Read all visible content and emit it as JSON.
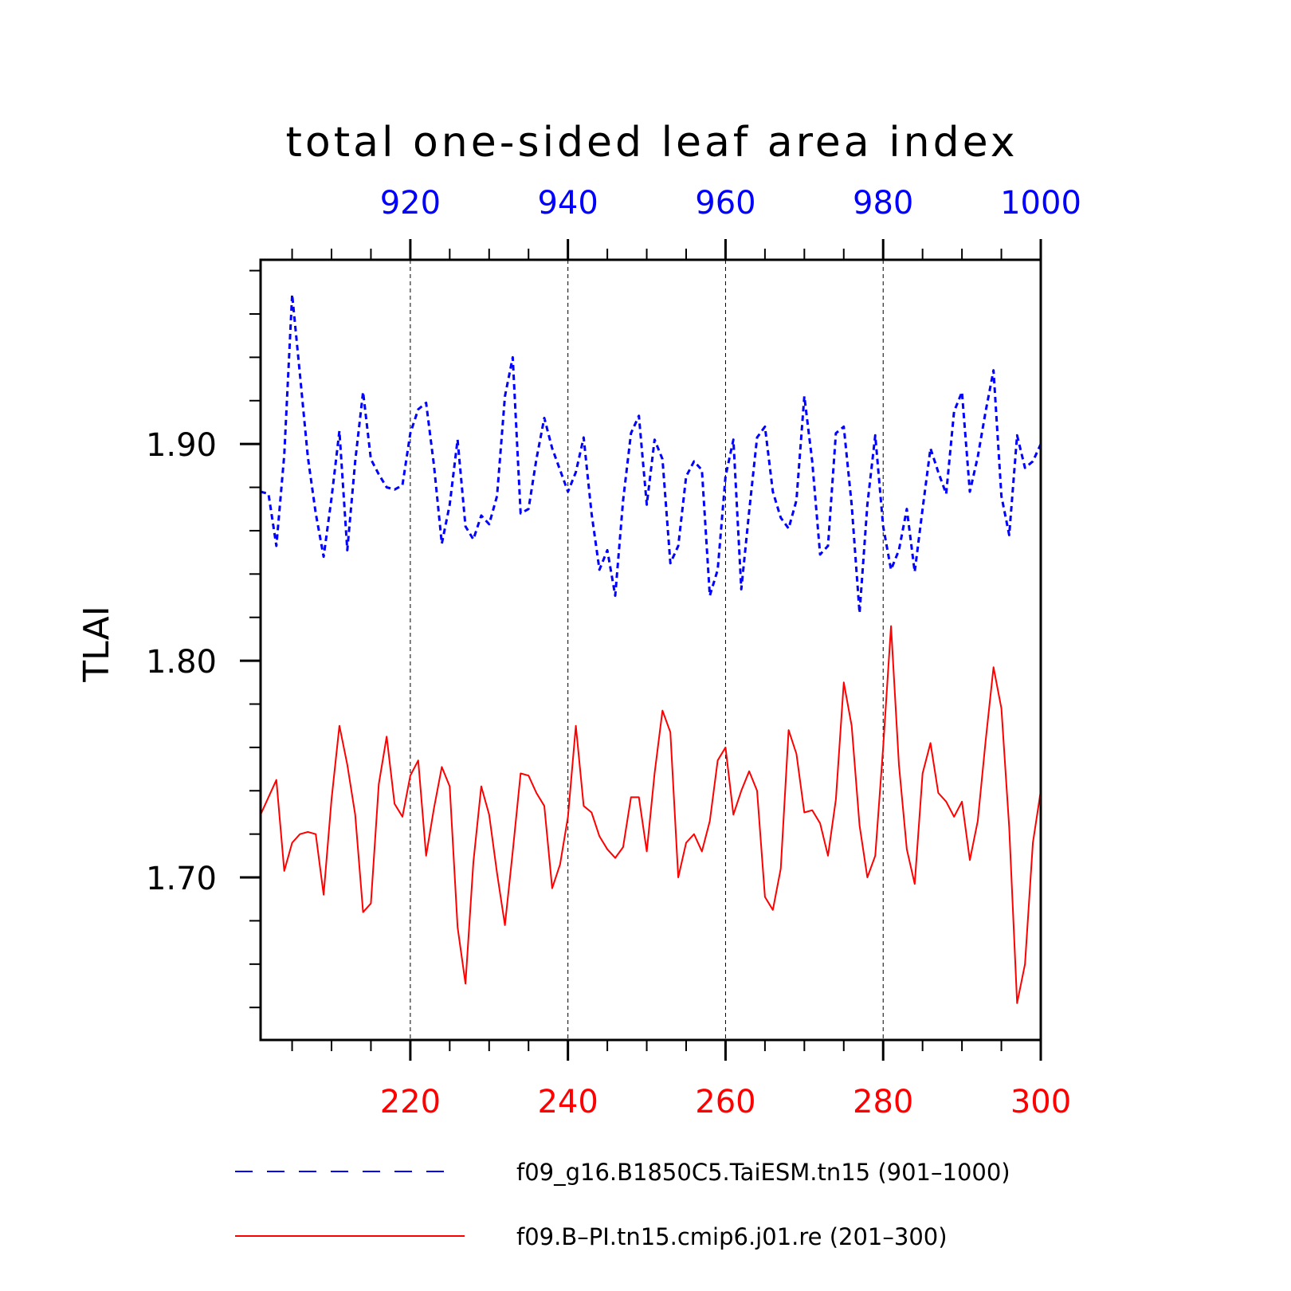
{
  "chart_data": {
    "type": "line",
    "title": "total one-sided leaf area index",
    "ylabel": "TLAI",
    "ylim": [
      1.625,
      1.985
    ],
    "yticks": [
      {
        "value": 1.7,
        "label": "1.70"
      },
      {
        "value": 1.8,
        "label": "1.80"
      },
      {
        "value": 1.9,
        "label": "1.90"
      }
    ],
    "x_bottom": {
      "range": [
        201,
        300
      ],
      "ticks": [
        {
          "value": 220,
          "label": "220"
        },
        {
          "value": 240,
          "label": "240"
        },
        {
          "value": 260,
          "label": "260"
        },
        {
          "value": 280,
          "label": "280"
        },
        {
          "value": 300,
          "label": "300"
        }
      ],
      "color": "#ff0000"
    },
    "x_top": {
      "range": [
        901,
        1000
      ],
      "ticks": [
        {
          "value": 920,
          "label": "920"
        },
        {
          "value": 940,
          "label": "940"
        },
        {
          "value": 960,
          "label": "960"
        },
        {
          "value": 980,
          "label": "980"
        },
        {
          "value": 1000,
          "label": "1000"
        }
      ],
      "color": "#0000ff"
    },
    "grid": "vertical dashed at major ticks",
    "legend_position": "bottom",
    "series": [
      {
        "name": "f09_g16.B1850C5.TaiESM.tn15 (901–1000)",
        "axis": "top",
        "x_start": 901,
        "color": "#0000ff",
        "style": "dashed",
        "values": [
          1.878,
          1.877,
          1.853,
          1.895,
          1.969,
          1.932,
          1.894,
          1.868,
          1.848,
          1.875,
          1.906,
          1.851,
          1.892,
          1.924,
          1.893,
          1.886,
          1.88,
          1.879,
          1.881,
          1.905,
          1.916,
          1.919,
          1.89,
          1.854,
          1.872,
          1.902,
          1.862,
          1.856,
          1.867,
          1.863,
          1.876,
          1.922,
          1.94,
          1.868,
          1.87,
          1.893,
          1.912,
          1.898,
          1.888,
          1.878,
          1.887,
          1.903,
          1.868,
          1.842,
          1.851,
          1.83,
          1.874,
          1.905,
          1.913,
          1.872,
          1.902,
          1.893,
          1.845,
          1.853,
          1.885,
          1.892,
          1.888,
          1.83,
          1.842,
          1.885,
          1.902,
          1.833,
          1.869,
          1.903,
          1.908,
          1.878,
          1.866,
          1.861,
          1.874,
          1.922,
          1.892,
          1.849,
          1.853,
          1.905,
          1.908,
          1.872,
          1.822,
          1.872,
          1.904,
          1.862,
          1.842,
          1.851,
          1.87,
          1.841,
          1.87,
          1.898,
          1.887,
          1.877,
          1.915,
          1.924,
          1.878,
          1.894,
          1.915,
          1.934,
          1.876,
          1.858,
          1.904,
          1.889,
          1.892,
          1.9
        ]
      },
      {
        "name": "f09.B–PI.tn15.cmip6.j01.re (201–300)",
        "axis": "bottom",
        "x_start": 201,
        "color": "#ff0000",
        "style": "solid",
        "values": [
          1.729,
          1.737,
          1.745,
          1.703,
          1.716,
          1.72,
          1.721,
          1.72,
          1.692,
          1.736,
          1.77,
          1.752,
          1.729,
          1.684,
          1.688,
          1.743,
          1.765,
          1.734,
          1.728,
          1.747,
          1.754,
          1.71,
          1.732,
          1.751,
          1.742,
          1.677,
          1.651,
          1.707,
          1.742,
          1.729,
          1.702,
          1.678,
          1.712,
          1.748,
          1.747,
          1.739,
          1.733,
          1.695,
          1.706,
          1.728,
          1.77,
          1.733,
          1.73,
          1.719,
          1.713,
          1.709,
          1.714,
          1.737,
          1.737,
          1.712,
          1.748,
          1.777,
          1.767,
          1.7,
          1.716,
          1.72,
          1.712,
          1.726,
          1.754,
          1.76,
          1.729,
          1.74,
          1.749,
          1.74,
          1.691,
          1.685,
          1.704,
          1.768,
          1.757,
          1.73,
          1.731,
          1.725,
          1.71,
          1.736,
          1.79,
          1.77,
          1.724,
          1.7,
          1.71,
          1.76,
          1.816,
          1.752,
          1.713,
          1.697,
          1.748,
          1.762,
          1.739,
          1.735,
          1.728,
          1.735,
          1.708,
          1.726,
          1.763,
          1.797,
          1.778,
          1.723,
          1.642,
          1.66,
          1.716,
          1.74
        ]
      }
    ]
  }
}
